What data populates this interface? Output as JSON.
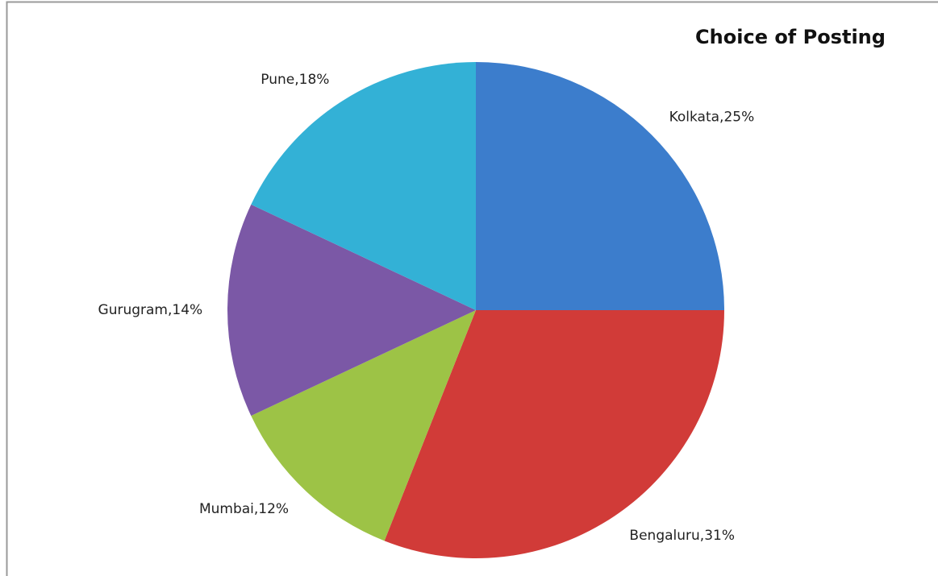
{
  "chart_data": {
    "type": "pie",
    "title": "Choice of Posting",
    "values": [
      25,
      31,
      12,
      14,
      18
    ],
    "value_labels": [
      "Kolkata,25%",
      "Bengaluru,31%",
      "Mumbai,12%",
      "Gurugram,14%",
      "Pune,18%"
    ],
    "colors": [
      "#3c7dcc",
      "#d13b38",
      "#9dc346",
      "#7b58a6",
      "#33b1d6"
    ]
  }
}
